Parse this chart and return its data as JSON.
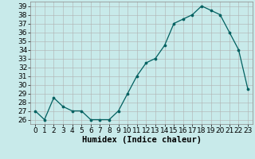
{
  "x": [
    0,
    1,
    2,
    3,
    4,
    5,
    6,
    7,
    8,
    9,
    10,
    11,
    12,
    13,
    14,
    15,
    16,
    17,
    18,
    19,
    20,
    21,
    22,
    23
  ],
  "y": [
    27,
    26,
    28.5,
    27.5,
    27,
    27,
    26,
    26,
    26,
    27,
    29,
    31,
    32.5,
    33,
    34.5,
    37,
    37.5,
    38,
    39,
    38.5,
    38,
    36,
    34,
    29.5
  ],
  "xlabel": "Humidex (Indice chaleur)",
  "ylim": [
    25.5,
    39.5
  ],
  "xlim": [
    -0.5,
    23.5
  ],
  "yticks": [
    26,
    27,
    28,
    29,
    30,
    31,
    32,
    33,
    34,
    35,
    36,
    37,
    38,
    39
  ],
  "xticks": [
    0,
    1,
    2,
    3,
    4,
    5,
    6,
    7,
    8,
    9,
    10,
    11,
    12,
    13,
    14,
    15,
    16,
    17,
    18,
    19,
    20,
    21,
    22,
    23
  ],
  "line_color": "#006060",
  "marker_color": "#006060",
  "bg_color": "#c8eaea",
  "grid_color": "#b0b0b0",
  "xlabel_fontsize": 7.5,
  "tick_fontsize": 6.5,
  "xlabel_fontweight": "bold"
}
